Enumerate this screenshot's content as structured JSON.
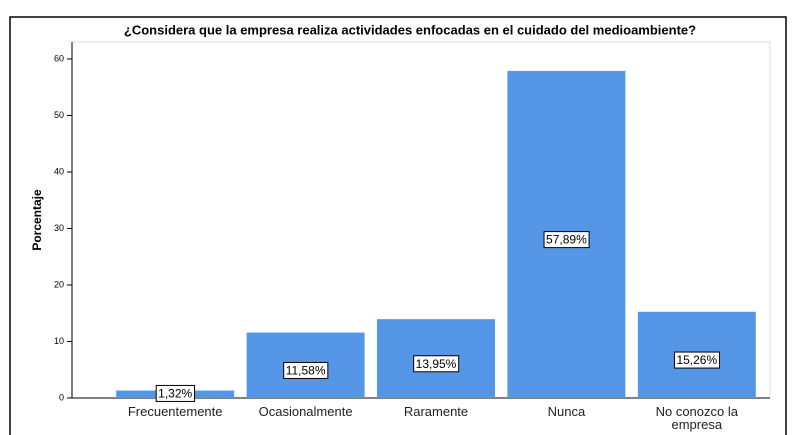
{
  "chart_data": {
    "type": "bar",
    "title": "¿Considera que la empresa realiza actividades enfocadas en el cuidado del medioambiente?",
    "y_label": "Porcentaje",
    "categories": [
      "Frecuentemente",
      "Ocasionalmente",
      "Raramente",
      "Nunca",
      "No conozco la empresa"
    ],
    "values": [
      1.32,
      11.58,
      13.95,
      57.89,
      15.26
    ],
    "value_labels": [
      "1,32%",
      "11,58%",
      "13,95%",
      "57,89%",
      "15,26%"
    ],
    "color": "#5597e6",
    "ylim": [
      0,
      63
    ],
    "yticks": [
      0,
      10,
      20,
      30,
      40,
      50,
      60
    ],
    "grid": false
  }
}
